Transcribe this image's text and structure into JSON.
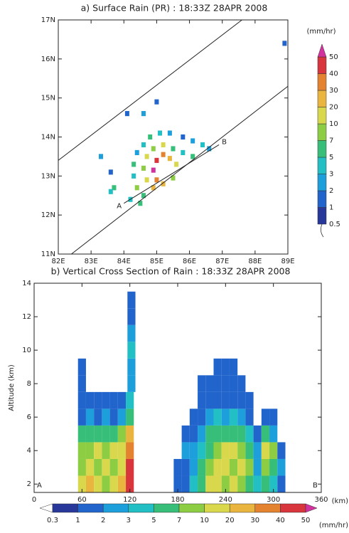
{
  "chart_data": [
    {
      "type": "heatmap",
      "title": "a) Surface Rain (PR) : 18:33Z 28APR 2008",
      "xlim": [
        82,
        89
      ],
      "ylim": [
        11,
        17
      ],
      "xticks": [
        {
          "value": 82,
          "label": "82E"
        },
        {
          "value": 83,
          "label": "83E"
        },
        {
          "value": 84,
          "label": "84E"
        },
        {
          "value": 85,
          "label": "85E"
        },
        {
          "value": 86,
          "label": "86E"
        },
        {
          "value": 87,
          "label": "87E"
        },
        {
          "value": 88,
          "label": "88E"
        },
        {
          "value": 89,
          "label": "89E"
        }
      ],
      "yticks": [
        {
          "value": 11,
          "label": "11N"
        },
        {
          "value": 12,
          "label": "12N"
        },
        {
          "value": 13,
          "label": "13N"
        },
        {
          "value": 14,
          "label": "14N"
        },
        {
          "value": 15,
          "label": "15N"
        },
        {
          "value": 16,
          "label": "16N"
        },
        {
          "value": 17,
          "label": "17N"
        }
      ],
      "x": [
        85.4,
        85.1,
        84.8,
        84.6,
        84.4,
        84.3,
        84.3,
        84.4,
        84.6,
        85.8,
        86.1,
        86.4,
        86.6,
        85.2,
        84.9,
        84.7,
        84.6,
        84.7,
        84.9,
        85.5,
        85.8,
        86.1,
        85.0,
        85.2,
        84.9,
        85.0,
        85.4,
        85.6,
        85.2,
        85.5,
        83.3,
        83.6,
        83.7,
        83.6,
        84.1,
        84.6,
        85.0,
        88.9,
        84.2,
        84.5
      ],
      "y": [
        14.1,
        14.1,
        14.0,
        13.8,
        13.6,
        13.3,
        13.0,
        12.7,
        12.5,
        14.0,
        13.9,
        13.8,
        13.7,
        13.8,
        13.7,
        13.5,
        13.2,
        12.9,
        12.7,
        13.7,
        13.6,
        13.5,
        13.4,
        13.55,
        13.15,
        12.9,
        13.45,
        13.3,
        12.8,
        12.95,
        13.5,
        13.1,
        12.7,
        12.6,
        14.6,
        14.6,
        14.9,
        16.4,
        12.4,
        12.3
      ],
      "values": [
        2,
        3,
        5,
        3,
        2,
        5,
        3,
        7,
        5,
        1,
        2,
        3,
        2,
        10,
        7,
        10,
        7,
        10,
        20,
        5,
        3,
        5,
        40,
        30,
        50,
        30,
        20,
        10,
        20,
        7,
        2,
        1,
        5,
        3,
        1,
        2,
        1,
        1,
        3,
        5
      ],
      "lines": [
        {
          "x": [
            82,
            87.6
          ],
          "y": [
            13.4,
            17
          ]
        },
        {
          "x": [
            82.4,
            89
          ],
          "y": [
            11,
            15.3
          ]
        },
        {
          "x": [
            84.0,
            86.9
          ],
          "y": [
            12.3,
            13.8
          ]
        }
      ],
      "annotations": [
        "A",
        "B"
      ],
      "colorbar": "right",
      "colorbar_unit": "(mm/hr)",
      "levels": [
        0.5,
        1,
        2,
        3,
        5,
        7,
        10,
        20,
        30,
        40,
        50
      ],
      "colors": [
        "#28379a",
        "#2164cc",
        "#1d9fdc",
        "#22c0c4",
        "#37bf7a",
        "#8ccd44",
        "#d9d84c",
        "#e9b53e",
        "#e3832f",
        "#d8353c",
        "#d2329e"
      ]
    },
    {
      "type": "heatmap",
      "title": "b) Vertical Cross Section of Rain : 18:33Z 28APR 2008",
      "ylabel": "Altitude (km)",
      "xunit": "(km)",
      "xlim": [
        0,
        360
      ],
      "ylim": [
        1.5,
        14
      ],
      "xticks": [
        0,
        60,
        120,
        180,
        240,
        300,
        360
      ],
      "yticks": [
        2,
        4,
        6,
        8,
        10,
        12,
        14
      ],
      "x": [
        60,
        60,
        60,
        60,
        60,
        60,
        60,
        60,
        70,
        70,
        70,
        70,
        70,
        70,
        80,
        80,
        80,
        80,
        80,
        80,
        90,
        90,
        90,
        90,
        90,
        90,
        100,
        100,
        100,
        100,
        100,
        100,
        110,
        110,
        110,
        110,
        110,
        110,
        120,
        120,
        120,
        120,
        120,
        120,
        122,
        122,
        122,
        122,
        122,
        122,
        180,
        180,
        190,
        190,
        190,
        190,
        200,
        200,
        200,
        200,
        200,
        210,
        210,
        210,
        210,
        210,
        210,
        210,
        220,
        220,
        220,
        220,
        220,
        220,
        220,
        230,
        230,
        230,
        230,
        230,
        230,
        230,
        230,
        240,
        240,
        240,
        240,
        240,
        240,
        240,
        240,
        250,
        250,
        250,
        250,
        250,
        250,
        250,
        250,
        260,
        260,
        260,
        260,
        260,
        260,
        260,
        270,
        270,
        270,
        270,
        270,
        270,
        280,
        280,
        280,
        280,
        290,
        290,
        290,
        290,
        290,
        300,
        300,
        300,
        300,
        300,
        310,
        310,
        310
      ],
      "y": [
        2,
        3,
        4,
        5,
        6,
        7,
        8,
        9,
        2,
        3,
        4,
        5,
        6,
        7,
        2,
        3,
        4,
        5,
        6,
        7,
        2,
        3,
        4,
        5,
        6,
        7,
        2,
        3,
        4,
        5,
        6,
        7,
        2,
        3,
        4,
        5,
        6,
        7,
        2,
        3,
        4,
        5,
        6,
        7,
        8,
        9,
        10,
        11,
        12,
        13,
        2,
        3,
        2,
        3,
        4,
        5,
        2,
        3,
        4,
        5,
        6,
        2,
        3,
        4,
        5,
        6,
        7,
        8,
        2,
        3,
        4,
        5,
        6,
        7,
        8,
        2,
        3,
        4,
        5,
        6,
        7,
        8,
        9,
        2,
        3,
        4,
        5,
        6,
        7,
        8,
        9,
        2,
        3,
        4,
        5,
        6,
        7,
        8,
        9,
        2,
        3,
        4,
        5,
        6,
        7,
        8,
        2,
        3,
        4,
        5,
        6,
        7,
        2,
        3,
        4,
        5,
        2,
        3,
        4,
        5,
        6,
        2,
        3,
        4,
        5,
        6,
        2,
        3,
        4
      ],
      "values": [
        10,
        7,
        7,
        5,
        1,
        1,
        1,
        1,
        20,
        10,
        7,
        5,
        2,
        1,
        10,
        7,
        10,
        5,
        1,
        1,
        7,
        10,
        7,
        5,
        2,
        1,
        10,
        7,
        10,
        5,
        1,
        1,
        20,
        10,
        10,
        7,
        2,
        1,
        40,
        40,
        30,
        20,
        5,
        3,
        2,
        2,
        3,
        2,
        1,
        1,
        1,
        1,
        1,
        1,
        2,
        1,
        3,
        2,
        2,
        1,
        1,
        5,
        5,
        3,
        2,
        1,
        1,
        1,
        10,
        7,
        5,
        5,
        2,
        1,
        1,
        10,
        10,
        7,
        5,
        3,
        1,
        1,
        1,
        7,
        10,
        10,
        5,
        2,
        1,
        1,
        1,
        10,
        7,
        10,
        5,
        3,
        1,
        1,
        1,
        7,
        10,
        7,
        5,
        2,
        1,
        1,
        5,
        7,
        5,
        3,
        1,
        1,
        3,
        2,
        2,
        1,
        5,
        7,
        10,
        5,
        1,
        3,
        5,
        7,
        2,
        1,
        1,
        2,
        1
      ],
      "annotations": [
        "A",
        "B"
      ],
      "colorbar": "bottom",
      "colorbar_unit": "(mm/hr)",
      "levels": [
        0.3,
        1,
        2,
        3,
        5,
        7,
        10,
        20,
        30,
        40,
        50
      ],
      "colors": [
        "#28379a",
        "#2164cc",
        "#1d9fdc",
        "#22c0c4",
        "#37bf7a",
        "#8ccd44",
        "#d9d84c",
        "#e9b53e",
        "#e3832f",
        "#d8353c",
        "#d2329e"
      ]
    }
  ]
}
